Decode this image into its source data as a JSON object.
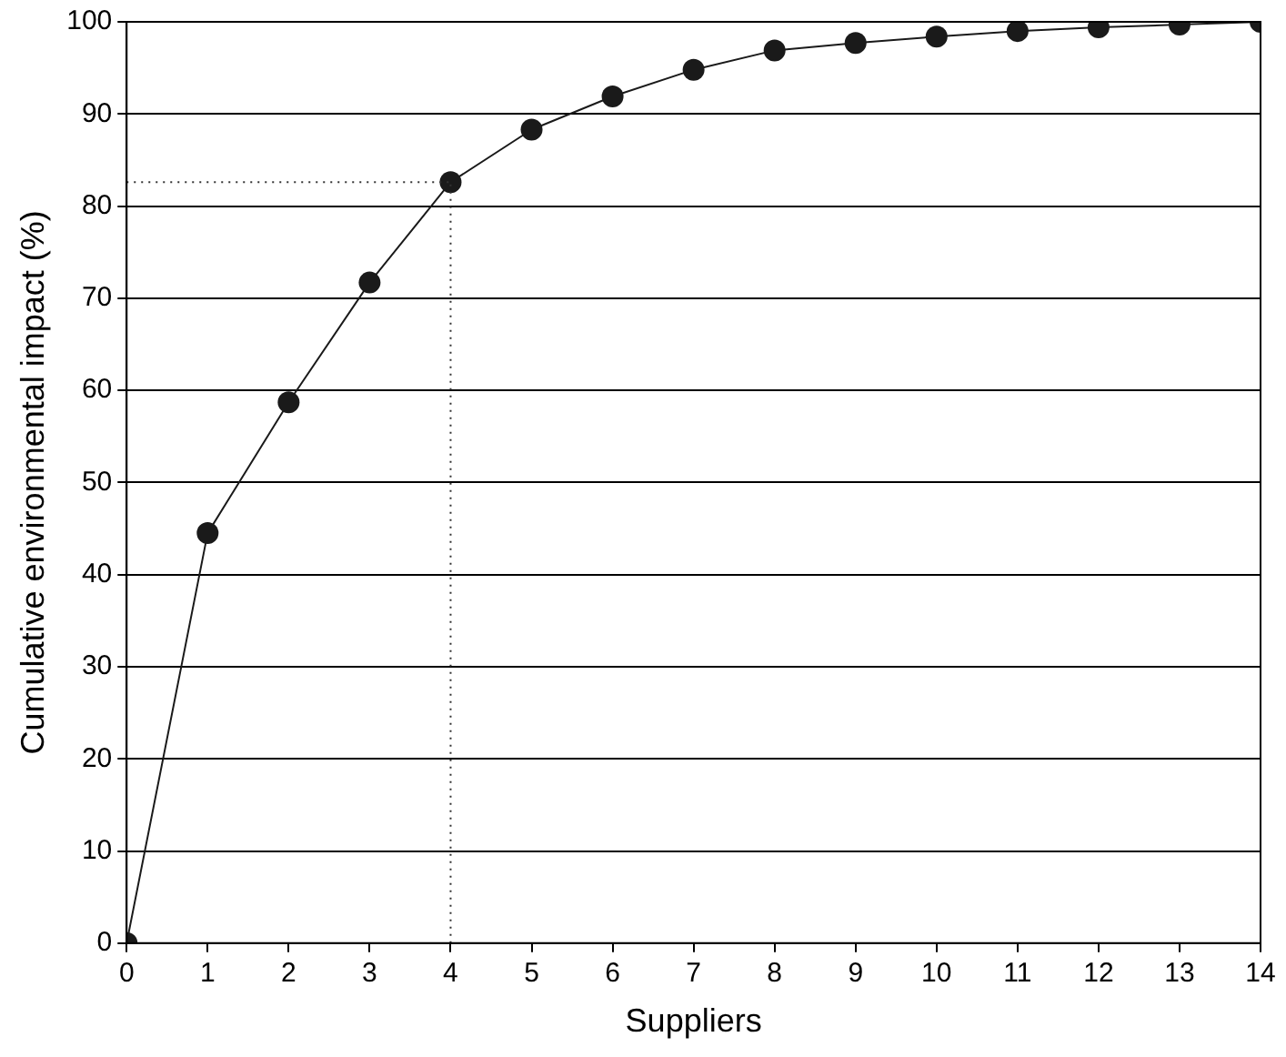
{
  "chart_data": {
    "type": "line",
    "xlabel": "Suppliers",
    "ylabel": "Cumulative environmental impact (%)",
    "x": [
      0,
      1,
      2,
      3,
      4,
      5,
      6,
      7,
      8,
      9,
      10,
      11,
      12,
      13,
      14
    ],
    "series": [
      {
        "color": "#1a1a1a",
        "values": [
          0,
          44.5,
          58.7,
          71.7,
          82.6,
          88.3,
          91.9,
          94.8,
          96.9,
          97.7,
          98.4,
          99.0,
          99.4,
          99.7,
          100
        ]
      }
    ],
    "xlim": [
      0,
      14
    ],
    "xticks": [
      0,
      1,
      2,
      3,
      4,
      5,
      6,
      7,
      8,
      9,
      10,
      11,
      12,
      13,
      14
    ],
    "ylim": [
      0,
      100
    ],
    "yticks": [
      0,
      10,
      20,
      30,
      40,
      50,
      60,
      70,
      80,
      90,
      100
    ],
    "grid": "y",
    "marker": "circle",
    "line_style": "solid",
    "legend": false,
    "ref_lines": [
      {
        "axis": "x",
        "value": 4,
        "color": "#333333",
        "line_style": "dotted"
      },
      {
        "axis": "y",
        "value": 82.6,
        "color": "#333333",
        "line_style": "dotted"
      }
    ]
  }
}
